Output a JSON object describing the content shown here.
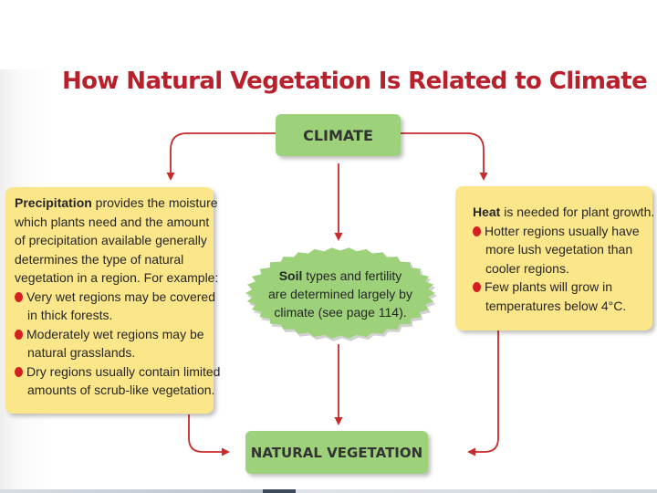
{
  "title": "How Natural Vegetation Is Related to Climate",
  "climate_box": {
    "label": "CLIMATE"
  },
  "vegetation_box": {
    "label": "NATURAL VEGETATION"
  },
  "precipitation_box": {
    "heading": "Precipitation",
    "lines": [
      " provides the moisture",
      "which plants need and the amount",
      "of precipitation available generally",
      "determines the type of natural",
      "vegetation in a region. For example:"
    ],
    "bullets": [
      [
        "Very wet regions may be covered",
        "in thick forests."
      ],
      [
        "Moderately wet regions may be",
        "natural grasslands."
      ],
      [
        "Dry regions usually contain limited",
        "amounts of scrub-like vegetation."
      ]
    ]
  },
  "heat_box": {
    "heading": "Heat",
    "lead": " is needed for plant growth.",
    "bullets": [
      [
        "Hotter regions usually have",
        "more lush vegetation than",
        "cooler regions."
      ],
      [
        "Few plants will grow in",
        "temperatures below 4°C."
      ]
    ]
  },
  "soil_box": {
    "heading": "Soil",
    "lines": [
      " types and fertility",
      "are determined largely by",
      "climate (see page 114)."
    ]
  },
  "colors": {
    "title": "#b8202b",
    "green_box": "#9dd27b",
    "yellow_box": "#fce68a",
    "arrow": "#c92a2a",
    "bullet": "#d42020"
  }
}
